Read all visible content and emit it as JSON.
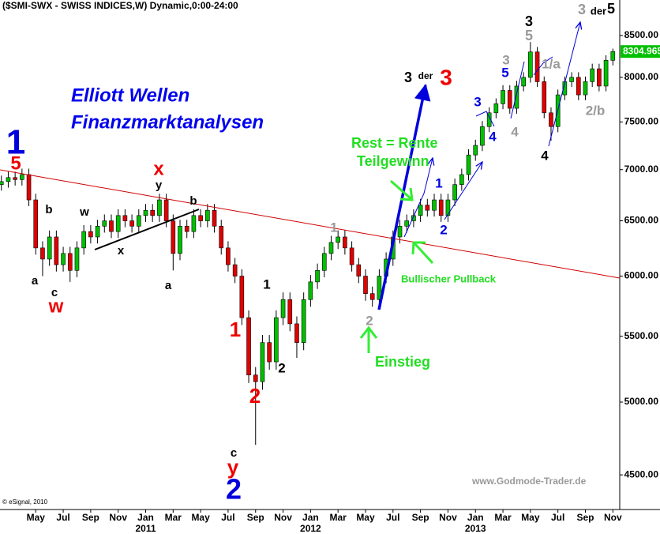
{
  "chart_data": {
    "type": "candlestick",
    "title": "($SMI-SWX - SWISS INDICES,W) Dynamic,0:00-24:00",
    "log_scale": true,
    "ylim": [
      4280,
      8948
    ],
    "yticks": [
      {
        "value": 4500,
        "label": "4500.00"
      },
      {
        "value": 5000,
        "label": "5000.00"
      },
      {
        "value": 5500,
        "label": "5500.00"
      },
      {
        "value": 6000,
        "label": "6000.00"
      },
      {
        "value": 6500,
        "label": "6500.00"
      },
      {
        "value": 7000,
        "label": "7000.00"
      },
      {
        "value": 7500,
        "label": "7500.00"
      },
      {
        "value": 8000,
        "label": "8000.00"
      },
      {
        "value": 8500,
        "label": "8500.00"
      }
    ],
    "xlim": [
      -2.6,
      42.5
    ],
    "xticks": [
      {
        "value": 0,
        "label": "May"
      },
      {
        "value": 2,
        "label": "Jul"
      },
      {
        "value": 4,
        "label": "Sep"
      },
      {
        "value": 6,
        "label": "Nov"
      },
      {
        "value": 8,
        "label": "Jan"
      },
      {
        "value": 10,
        "label": "Mar"
      },
      {
        "value": 12,
        "label": "May"
      },
      {
        "value": 14,
        "label": "Jul"
      },
      {
        "value": 16,
        "label": "Sep"
      },
      {
        "value": 18,
        "label": "Nov"
      },
      {
        "value": 20,
        "label": "Jan"
      },
      {
        "value": 22,
        "label": "Mar"
      },
      {
        "value": 24,
        "label": "May"
      },
      {
        "value": 26,
        "label": "Jul"
      },
      {
        "value": 28,
        "label": "Sep"
      },
      {
        "value": 30,
        "label": "Nov"
      },
      {
        "value": 32,
        "label": "Jan"
      },
      {
        "value": 34,
        "label": "Mar"
      },
      {
        "value": 36,
        "label": "May"
      },
      {
        "value": 38,
        "label": "Jul"
      },
      {
        "value": 40,
        "label": "Sep"
      },
      {
        "value": 42,
        "label": "Nov"
      }
    ],
    "year_labels": [
      {
        "value": 8,
        "label": "2011"
      },
      {
        "value": 20,
        "label": "2012"
      },
      {
        "value": 32,
        "label": "2013"
      }
    ],
    "up_color": "#00c000",
    "down_color": "#e00000",
    "candles": {
      "x": [
        -2.5,
        -2,
        -1.5,
        -1,
        -0.5,
        0,
        0.5,
        1,
        1.5,
        2,
        2.5,
        3,
        3.5,
        4,
        4.5,
        5,
        5.5,
        6,
        6.5,
        7,
        7.5,
        8,
        8.5,
        9,
        9.5,
        10,
        10.5,
        11,
        11.5,
        12,
        12.5,
        13,
        13.5,
        14,
        14.5,
        15,
        15.5,
        16,
        16.5,
        17,
        17.5,
        18,
        18.5,
        19,
        19.5,
        20,
        20.5,
        21,
        21.5,
        22,
        22.5,
        23,
        23.5,
        24,
        24.5,
        25,
        25.5,
        26,
        26.5,
        27,
        27.5,
        28,
        28.5,
        29,
        29.5,
        30,
        30.5,
        31,
        31.5,
        32,
        32.5,
        33,
        33.5,
        34,
        34.5,
        35,
        35.5,
        36,
        36.5,
        37,
        37.5,
        38,
        38.5,
        39,
        39.5,
        40,
        40.5,
        41,
        41.5,
        42
      ],
      "open": [
        6850,
        6880,
        6920,
        6900,
        6950,
        6700,
        6250,
        6150,
        6350,
        6100,
        6200,
        6050,
        6250,
        6400,
        6350,
        6450,
        6500,
        6400,
        6550,
        6500,
        6450,
        6550,
        6600,
        6550,
        6700,
        6500,
        6200,
        6450,
        6400,
        6550,
        6500,
        6600,
        6450,
        6250,
        6100,
        6000,
        5650,
        5200,
        5150,
        5450,
        5300,
        5650,
        5800,
        5600,
        5450,
        5800,
        5950,
        6050,
        6200,
        6300,
        6350,
        6250,
        6100,
        6000,
        5850,
        5800,
        6000,
        6150,
        6350,
        6450,
        6500,
        6550,
        6650,
        6600,
        6700,
        6550,
        6700,
        6850,
        6950,
        7150,
        7250,
        7450,
        7600,
        7700,
        7850,
        7650,
        7900,
        8000,
        8300,
        7950,
        7600,
        7450,
        7800,
        7950,
        8000,
        7800,
        7950,
        8100,
        7900,
        8200
      ],
      "high": [
        6940,
        6980,
        6980,
        7010,
        7010,
        6760,
        6310,
        6410,
        6410,
        6260,
        6260,
        6310,
        6460,
        6460,
        6510,
        6560,
        6560,
        6610,
        6610,
        6560,
        6610,
        6660,
        6660,
        6760,
        6760,
        6560,
        6510,
        6510,
        6610,
        6610,
        6660,
        6660,
        6510,
        6310,
        6160,
        6060,
        5710,
        5260,
        5510,
        5510,
        5710,
        5860,
        5860,
        5660,
        5860,
        6010,
        6110,
        6260,
        6360,
        6410,
        6410,
        6310,
        6160,
        6060,
        5910,
        6060,
        6210,
        6410,
        6510,
        6560,
        6610,
        6710,
        6710,
        6760,
        6760,
        6760,
        6910,
        7010,
        7210,
        7310,
        7510,
        7660,
        7760,
        7910,
        7910,
        7960,
        8060,
        8420,
        8360,
        8010,
        7660,
        7860,
        8010,
        8060,
        8060,
        8010,
        8160,
        8160,
        8260,
        8340
      ],
      "low": [
        6790,
        6820,
        6840,
        6840,
        6640,
        6190,
        6000,
        6090,
        6040,
        6040,
        5950,
        5990,
        6190,
        6290,
        6290,
        6390,
        6340,
        6340,
        6440,
        6390,
        6390,
        6490,
        6490,
        6490,
        6440,
        6050,
        6140,
        6340,
        6340,
        6440,
        6440,
        6390,
        6190,
        6040,
        5940,
        5590,
        5140,
        4700,
        5090,
        5240,
        5240,
        5590,
        5540,
        5330,
        5390,
        5740,
        5890,
        5990,
        6140,
        6240,
        6190,
        6040,
        5940,
        5790,
        5740,
        5740,
        5940,
        6090,
        6290,
        6390,
        6440,
        6490,
        6540,
        6540,
        6490,
        6490,
        6640,
        6790,
        6890,
        7090,
        7190,
        7390,
        7540,
        7640,
        7590,
        7590,
        7840,
        7940,
        7890,
        7540,
        7300,
        7390,
        7740,
        7890,
        7740,
        7740,
        7890,
        7840,
        7840,
        8140
      ],
      "close": [
        6880,
        6920,
        6900,
        6950,
        6700,
        6250,
        6150,
        6350,
        6100,
        6200,
        6050,
        6250,
        6400,
        6350,
        6450,
        6500,
        6400,
        6550,
        6500,
        6450,
        6550,
        6600,
        6550,
        6700,
        6500,
        6200,
        6450,
        6400,
        6550,
        6500,
        6600,
        6450,
        6250,
        6100,
        6000,
        5650,
        5200,
        5150,
        5450,
        5300,
        5650,
        5800,
        5600,
        5450,
        5800,
        5950,
        6050,
        6200,
        6300,
        6350,
        6250,
        6100,
        6000,
        5850,
        5800,
        6000,
        6150,
        6350,
        6450,
        6500,
        6550,
        6650,
        6600,
        6700,
        6550,
        6700,
        6850,
        6950,
        7150,
        7250,
        7450,
        7600,
        7700,
        7850,
        7650,
        7900,
        8000,
        8300,
        7950,
        7600,
        7450,
        7800,
        7950,
        8000,
        7800,
        7950,
        8100,
        7900,
        8200,
        8304.965
      ]
    },
    "headline": [
      "Elliott Wellen",
      "Finanzmarktanalysen"
    ],
    "annotations": [
      "1",
      "5",
      "a",
      "b",
      "c",
      "w",
      "w",
      "x",
      "y",
      "x",
      "b",
      "a",
      "1",
      "2",
      "c",
      "y",
      "2",
      "1",
      "2",
      "1",
      "2",
      "Einstieg",
      "Bullischer Pullback",
      "Rest = Rente",
      "Teilgewinn",
      "3",
      "der",
      "3",
      "1",
      "2",
      "3",
      "4",
      "3",
      "5",
      "4",
      "3",
      "5",
      "1/a",
      "2/b",
      "4",
      "3",
      "der",
      "5"
    ],
    "watermark": "www.Godmode-Trader.de",
    "copyright": "© eSignal, 2010"
  }
}
